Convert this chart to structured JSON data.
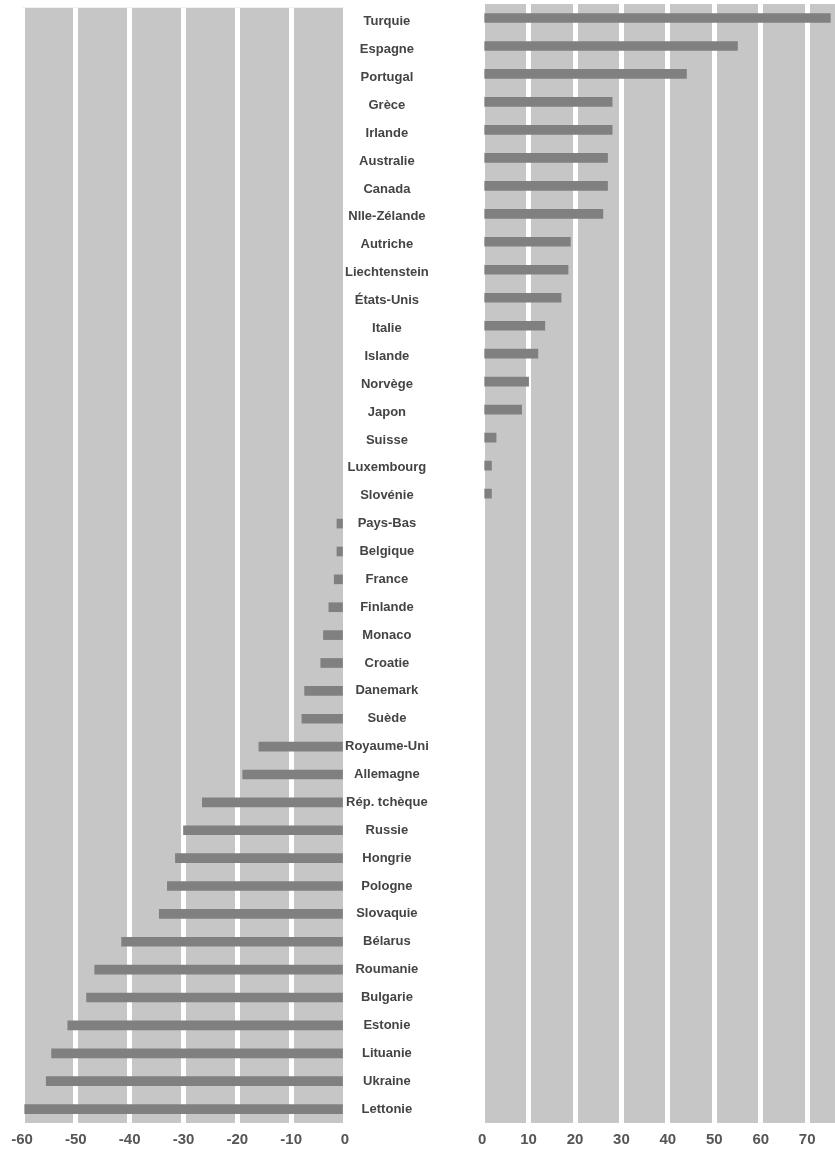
{
  "chart_data": [
    {
      "type": "bar",
      "orientation": "horizontal",
      "categories": [
        "Turquie",
        "Espagne",
        "Portugal",
        "Grèce",
        "Irlande",
        "Australie",
        "Canada",
        "Nlle-Zélande",
        "Autriche",
        "Liechtenstein",
        "États-Unis",
        "Italie",
        "Islande",
        "Norvège",
        "Japon",
        "Suisse",
        "Luxembourg",
        "Slovénie",
        "Pays-Bas",
        "Belgique",
        "France",
        "Finlande",
        "Monaco",
        "Croatie",
        "Danemark",
        "Suède",
        "Royaume-Uni",
        "Allemagne",
        "Rép. tchèque",
        "Russie",
        "Hongrie",
        "Pologne",
        "Slovaquie",
        "Bélarus",
        "Roumanie",
        "Bulgarie",
        "Estonie",
        "Lituanie",
        "Ukraine",
        "Lettonie"
      ],
      "values": [
        null,
        null,
        null,
        null,
        null,
        null,
        null,
        null,
        null,
        null,
        null,
        null,
        null,
        null,
        null,
        null,
        null,
        null,
        -1.5,
        -1.5,
        -2,
        -3,
        -4,
        -4.5,
        -7.5,
        -8,
        -16,
        -19,
        -26.5,
        -30,
        -31.5,
        -33,
        -34.5,
        -41.5,
        -46.5,
        -48,
        -51.5,
        -54.5,
        -55.5,
        -59.5
      ],
      "color": "#808080",
      "xlim": [
        -60,
        0
      ],
      "xticks": [
        -60,
        -50,
        -40,
        -30,
        -20,
        -10,
        0
      ],
      "grid": "x"
    },
    {
      "type": "bar",
      "orientation": "horizontal",
      "categories": [
        null,
        null,
        null,
        null,
        null,
        null,
        null,
        null,
        null,
        null,
        null,
        null,
        null,
        null,
        null,
        null,
        null,
        null,
        null,
        null,
        null,
        null,
        null,
        null,
        null,
        null,
        null,
        null,
        null,
        null,
        null,
        null,
        null,
        null,
        null,
        null,
        null,
        null,
        null,
        null
      ],
      "values": [
        75,
        55,
        44,
        28,
        28,
        27,
        27,
        26,
        19,
        18.5,
        17,
        13.5,
        12,
        10,
        8.5,
        3,
        2,
        2,
        null,
        null,
        null,
        null,
        null,
        null,
        null,
        null,
        null,
        null,
        null,
        null,
        null,
        null,
        null,
        null,
        null,
        null,
        null,
        null,
        null,
        null
      ],
      "color": "#808080",
      "xlim": [
        0,
        76
      ],
      "xticks": [
        0,
        10,
        20,
        30,
        40,
        50,
        60,
        70
      ],
      "grid": "x",
      "tick_labels": "x"
    }
  ]
}
